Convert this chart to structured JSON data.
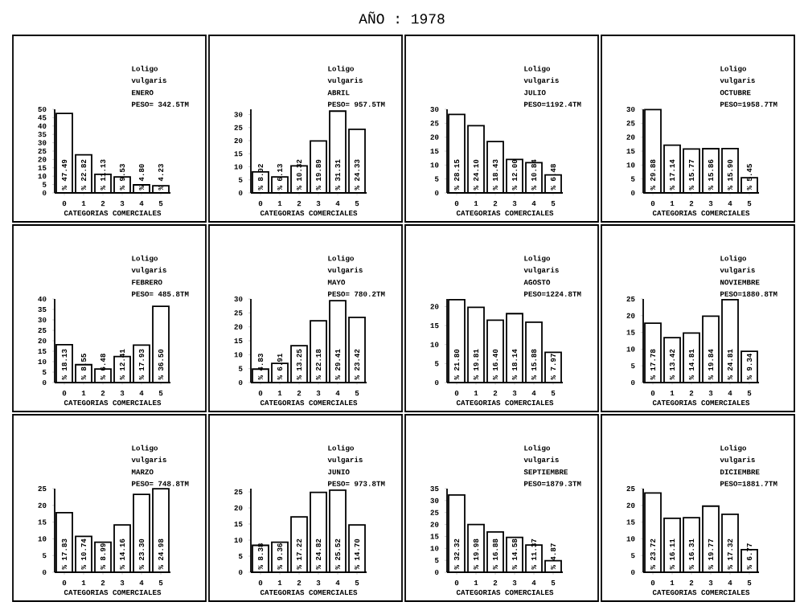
{
  "chart_data": [
    {
      "type": "other",
      "title": "AÑO : 1978"
    },
    {
      "type": "bar",
      "xlabel": "CATEGORIAS COMERCIALES",
      "annotations": [
        "Loligo",
        "vulgaris",
        "ENERO",
        "PESO= 342.5TM"
      ],
      "categories": [
        "0",
        "1",
        "2",
        "3",
        "4",
        "5"
      ],
      "values": [
        47.49,
        22.82,
        11.13,
        9.53,
        4.8,
        4.23
      ],
      "value_labels": [
        "% 47.49",
        "% 22.82",
        "% 11.13",
        "% 9.53",
        "% 4.80",
        "% 4.23"
      ],
      "color": "#ffffff",
      "ylim": [
        0,
        50
      ],
      "yticks": [
        0,
        5,
        10,
        15,
        20,
        25,
        30,
        35,
        40,
        45,
        50
      ]
    },
    {
      "type": "bar",
      "xlabel": "CATEGORIAS COMERCIALES",
      "annotations": [
        "Loligo",
        "vulgaris",
        "ABRIL",
        "PESO= 957.5TM"
      ],
      "categories": [
        "0",
        "1",
        "2",
        "3",
        "4",
        "5"
      ],
      "values": [
        8.02,
        6.13,
        10.32,
        19.89,
        31.31,
        24.33
      ],
      "value_labels": [
        "% 8.02",
        "% 6.13",
        "% 10.32",
        "% 19.89",
        "% 31.31",
        "% 24.33"
      ],
      "color": "#ffffff",
      "ylim": [
        0,
        32
      ],
      "yticks": [
        0,
        5,
        10,
        15,
        20,
        25,
        30
      ]
    },
    {
      "type": "bar",
      "xlabel": "CATEGORIAS COMERCIALES",
      "annotations": [
        "Loligo",
        "vulgaris",
        "JULIO",
        "PESO=1192.4TM"
      ],
      "categories": [
        "0",
        "1",
        "2",
        "3",
        "4",
        "5"
      ],
      "values": [
        28.15,
        24.1,
        18.43,
        12.0,
        10.84,
        6.48
      ],
      "value_labels": [
        "% 28.15",
        "% 24.10",
        "% 18.43",
        "% 12.00",
        "% 10.84",
        "% 6.48"
      ],
      "color": "#ffffff",
      "ylim": [
        0,
        30
      ],
      "yticks": [
        0,
        5,
        10,
        15,
        20,
        25,
        30
      ]
    },
    {
      "type": "bar",
      "xlabel": "CATEGORIAS COMERCIALES",
      "annotations": [
        "Loligo",
        "vulgaris",
        "OCTUBRE",
        "PESO=1958.7TM"
      ],
      "categories": [
        "0",
        "1",
        "2",
        "3",
        "4",
        "5"
      ],
      "values": [
        29.88,
        17.14,
        15.77,
        15.86,
        15.9,
        5.45
      ],
      "value_labels": [
        "% 29.88",
        "% 17.14",
        "% 15.77",
        "% 15.86",
        "% 15.90",
        "% 5.45"
      ],
      "color": "#ffffff",
      "ylim": [
        0,
        30
      ],
      "yticks": [
        0,
        5,
        10,
        15,
        20,
        25,
        30
      ]
    },
    {
      "type": "bar",
      "xlabel": "CATEGORIAS COMERCIALES",
      "annotations": [
        "Loligo",
        "vulgaris",
        "FEBRERO",
        "PESO= 485.8TM"
      ],
      "categories": [
        "0",
        "1",
        "2",
        "3",
        "4",
        "5"
      ],
      "values": [
        18.13,
        8.55,
        6.48,
        12.41,
        17.93,
        36.5
      ],
      "value_labels": [
        "% 18.13",
        "% 8.55",
        "% 6.48",
        "% 12.41",
        "% 17.93",
        "% 36.50"
      ],
      "color": "#ffffff",
      "ylim": [
        0,
        40
      ],
      "yticks": [
        0,
        5,
        10,
        15,
        20,
        25,
        30,
        35,
        40
      ]
    },
    {
      "type": "bar",
      "xlabel": "CATEGORIAS COMERCIALES",
      "annotations": [
        "Loligo",
        "vulgaris",
        "MAYO",
        "PESO= 780.2TM"
      ],
      "categories": [
        "0",
        "1",
        "2",
        "3",
        "4",
        "5"
      ],
      "values": [
        4.83,
        6.91,
        13.25,
        22.18,
        29.41,
        23.42
      ],
      "value_labels": [
        "% 4.83",
        "% 6.91",
        "% 13.25",
        "% 22.18",
        "% 29.41",
        "% 23.42"
      ],
      "color": "#ffffff",
      "ylim": [
        0,
        30
      ],
      "yticks": [
        0,
        5,
        10,
        15,
        20,
        25,
        30
      ]
    },
    {
      "type": "bar",
      "xlabel": "CATEGORIAS COMERCIALES",
      "annotations": [
        "Loligo",
        "vulgaris",
        "AGOSTO",
        "PESO=1224.8TM"
      ],
      "categories": [
        "0",
        "1",
        "2",
        "3",
        "4",
        "5"
      ],
      "values": [
        21.8,
        19.81,
        16.4,
        18.14,
        15.88,
        7.97
      ],
      "value_labels": [
        "% 21.80",
        "% 19.81",
        "% 16.40",
        "% 18.14",
        "% 15.88",
        "% 7.97"
      ],
      "color": "#ffffff",
      "ylim": [
        0,
        22
      ],
      "yticks": [
        0,
        5,
        10,
        15,
        20
      ]
    },
    {
      "type": "bar",
      "xlabel": "CATEGORIAS COMERCIALES",
      "annotations": [
        "Loligo",
        "vulgaris",
        "NOVIEMBRE",
        "PESO=1880.8TM"
      ],
      "categories": [
        "0",
        "1",
        "2",
        "3",
        "4",
        "5"
      ],
      "values": [
        17.78,
        13.42,
        14.81,
        19.84,
        24.81,
        9.34
      ],
      "value_labels": [
        "% 17.78",
        "% 13.42",
        "% 14.81",
        "% 19.84",
        "% 24.81",
        "% 9.34"
      ],
      "color": "#ffffff",
      "ylim": [
        0,
        25
      ],
      "yticks": [
        0,
        5,
        10,
        15,
        20,
        25
      ]
    },
    {
      "type": "bar",
      "xlabel": "CATEGORIAS COMERCIALES",
      "annotations": [
        "Loligo",
        "vulgaris",
        "MARZO",
        "PESO= 748.8TM"
      ],
      "categories": [
        "0",
        "1",
        "2",
        "3",
        "4",
        "5"
      ],
      "values": [
        17.83,
        10.74,
        8.99,
        14.16,
        23.3,
        24.98
      ],
      "value_labels": [
        "% 17.83",
        "% 10.74",
        "% 8.99",
        "% 14.16",
        "% 23.30",
        "% 24.98"
      ],
      "color": "#ffffff",
      "ylim": [
        0,
        25
      ],
      "yticks": [
        0,
        5,
        10,
        15,
        20,
        25
      ]
    },
    {
      "type": "bar",
      "xlabel": "CATEGORIAS COMERCIALES",
      "annotations": [
        "Loligo",
        "vulgaris",
        "JUNIO",
        "PESO= 973.8TM"
      ],
      "categories": [
        "0",
        "1",
        "2",
        "3",
        "4",
        "5"
      ],
      "values": [
        8.38,
        9.36,
        17.22,
        24.82,
        25.52,
        14.7
      ],
      "value_labels": [
        "% 8.38",
        "% 9.36",
        "% 17.22",
        "% 24.82",
        "% 25.52",
        "% 14.70"
      ],
      "color": "#ffffff",
      "ylim": [
        0,
        26
      ],
      "yticks": [
        0,
        5,
        10,
        15,
        20,
        25
      ]
    },
    {
      "type": "bar",
      "xlabel": "CATEGORIAS COMERCIALES",
      "annotations": [
        "Loligo",
        "vulgaris",
        "SEPTIEMBRE",
        "PESO=1879.3TM"
      ],
      "categories": [
        "0",
        "1",
        "2",
        "3",
        "4",
        "5"
      ],
      "values": [
        32.32,
        19.98,
        16.88,
        14.58,
        11.37,
        4.87
      ],
      "value_labels": [
        "% 32.32",
        "% 19.98",
        "% 16.88",
        "% 14.58",
        "% 11.37",
        "% 4.87"
      ],
      "color": "#ffffff",
      "ylim": [
        0,
        35
      ],
      "yticks": [
        0,
        5,
        10,
        15,
        20,
        25,
        30,
        35
      ]
    },
    {
      "type": "bar",
      "xlabel": "CATEGORIAS COMERCIALES",
      "annotations": [
        "Loligo",
        "vulgaris",
        "DICIEMBRE",
        "PESO=1881.7TM"
      ],
      "categories": [
        "0",
        "1",
        "2",
        "3",
        "4",
        "5"
      ],
      "values": [
        23.72,
        16.11,
        16.31,
        19.77,
        17.32,
        6.77
      ],
      "value_labels": [
        "% 23.72",
        "% 16.11",
        "% 16.31",
        "% 19.77",
        "% 17.32",
        "% 6.77"
      ],
      "color": "#ffffff",
      "ylim": [
        0,
        25
      ],
      "yticks": [
        0,
        5,
        10,
        15,
        20,
        25
      ]
    }
  ]
}
